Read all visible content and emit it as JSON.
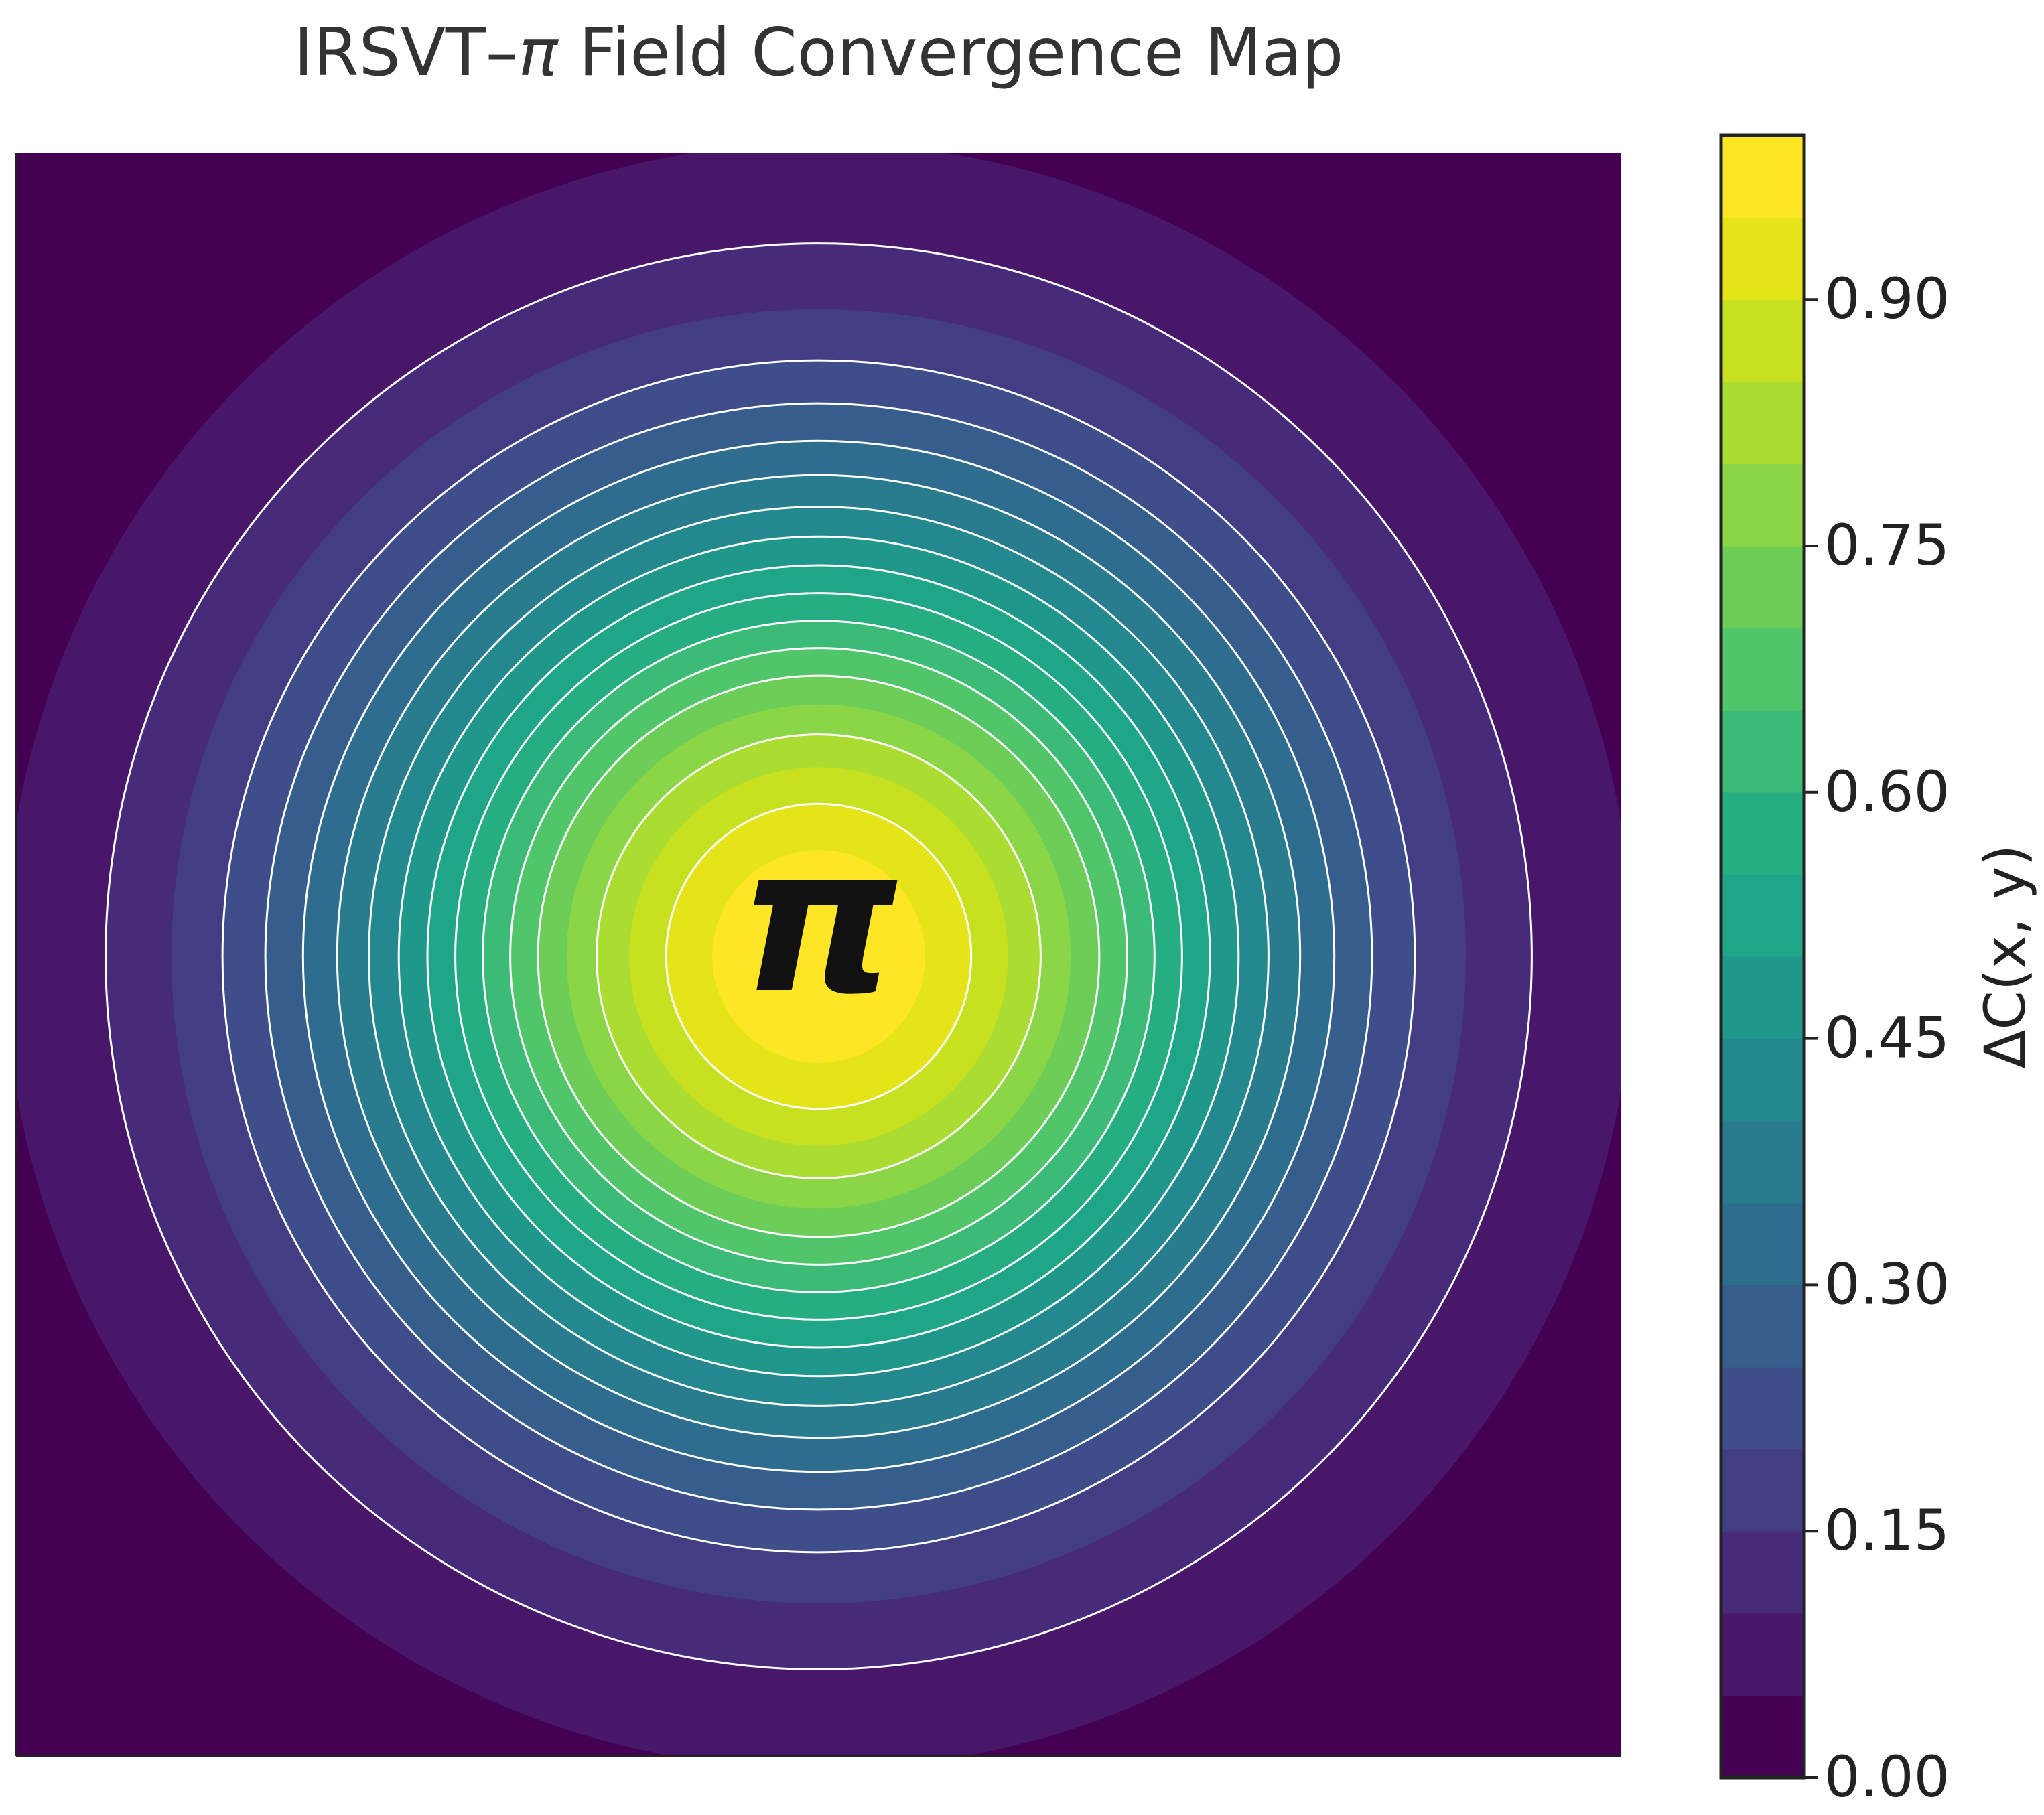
{
  "chart_data": {
    "type": "heatmap",
    "subtype": "filled-contour",
    "title_prefix": "IRSVT–",
    "title_symbol": "π",
    "title_suffix": " Field Convergence Map",
    "center_label": "π",
    "colorbar": {
      "label": "ΔC(x, y)",
      "range": [
        0,
        1
      ],
      "ticks": [
        0.0,
        0.15,
        0.3,
        0.45,
        0.6,
        0.75,
        0.9
      ],
      "tick_labels": [
        "0.00",
        "0.15",
        "0.30",
        "0.45",
        "0.60",
        "0.75",
        "0.90"
      ],
      "levels": [
        0.0,
        0.05,
        0.1,
        0.15,
        0.2,
        0.25,
        0.3,
        0.35,
        0.4,
        0.45,
        0.5,
        0.55,
        0.6,
        0.65,
        0.7,
        0.75,
        0.8,
        0.85,
        0.9,
        0.95,
        1.0
      ],
      "colors": [
        "#440154",
        "#481769",
        "#472a7a",
        "#433d84",
        "#3d4e8a",
        "#355e8d",
        "#2e6d8e",
        "#297b8e",
        "#23898e",
        "#1f978b",
        "#1fa587",
        "#26ad81",
        "#3bbb75",
        "#51c56a",
        "#6dcd59",
        "#8bd646",
        "#aadc32",
        "#c7e020",
        "#e5e419",
        "#fde725"
      ]
    },
    "field": {
      "function": "gaussian radial convergence field centered on π",
      "contour_line_levels": [
        0.1,
        0.2,
        0.25,
        0.3,
        0.35,
        0.4,
        0.45,
        0.5,
        0.55,
        0.6,
        0.65,
        0.7,
        0.8,
        0.9
      ],
      "contour_line_color": "#ffffff"
    },
    "axes_visible": false,
    "grid": false,
    "legend": "colorbar-right"
  }
}
